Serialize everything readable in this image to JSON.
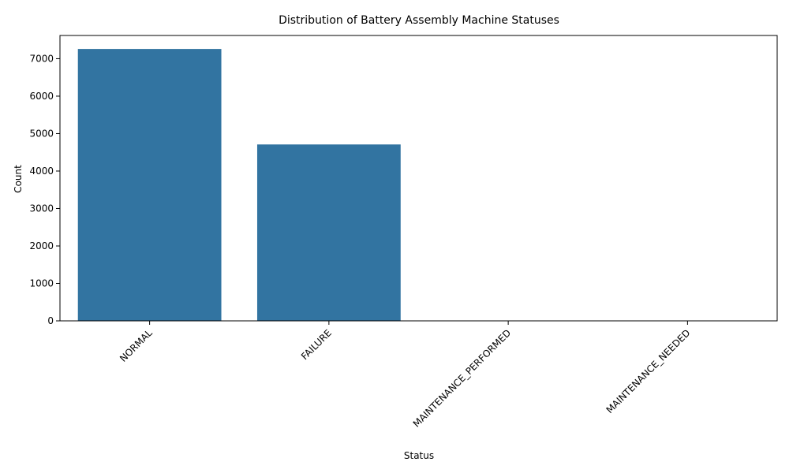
{
  "chart_data": {
    "type": "bar",
    "title": "Distribution of Battery Assembly Machine Statuses",
    "xlabel": "Status",
    "ylabel": "Count",
    "categories": [
      "NORMAL",
      "FAILURE",
      "MAINTENANCE_PERFORMED",
      "MAINTENANCE_NEEDED"
    ],
    "values": [
      7260,
      4710,
      0,
      0
    ],
    "ylim": [
      0,
      7620
    ],
    "yticks": [
      0,
      1000,
      2000,
      3000,
      4000,
      5000,
      6000,
      7000
    ],
    "bar_color": "#3274a1",
    "grid": false,
    "legend": "none"
  }
}
